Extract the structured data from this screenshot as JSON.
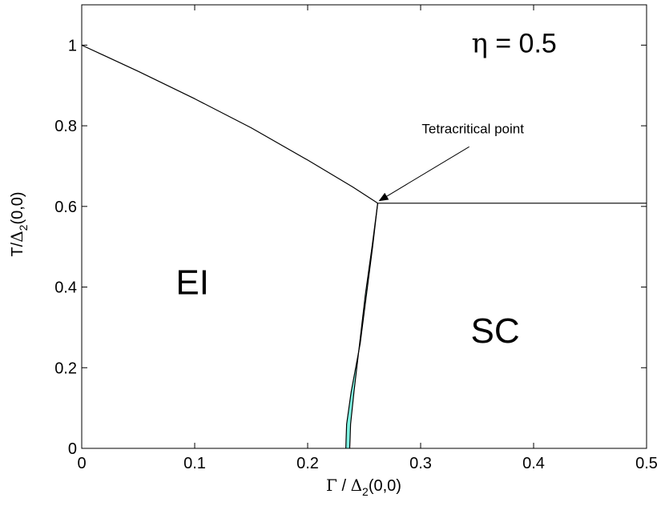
{
  "chart_data": {
    "type": "line",
    "title": "",
    "xlabel": {
      "gamma": "Γ",
      "slash": " / ",
      "delta": "Δ",
      "sub": "2",
      "args": "(0,0)"
    },
    "ylabel": {
      "prefix": "T/",
      "delta": "Δ",
      "sub": "2",
      "args": "(0,0)"
    },
    "xlim": [
      0,
      0.5
    ],
    "ylim": [
      0,
      1.1
    ],
    "xticks": [
      0,
      0.1,
      0.2,
      0.3,
      0.4,
      0.5
    ],
    "xtick_labels": [
      "0",
      "0.1",
      "0.2",
      "0.3",
      "0.4",
      "0.5"
    ],
    "yticks": [
      0,
      0.2,
      0.4,
      0.6,
      0.8,
      1
    ],
    "ytick_labels": [
      "0",
      "0.2",
      "0.4",
      "0.6",
      "0.8",
      "1"
    ],
    "grid": false,
    "colors": {
      "line": "#000000",
      "coexistence_fill": "#7ff5e3"
    },
    "series": [
      {
        "x": [
          0,
          0.05,
          0.1,
          0.15,
          0.2,
          0.24,
          0.262
        ],
        "y": [
          1.0,
          0.935,
          0.867,
          0.795,
          0.715,
          0.648,
          0.608
        ]
      },
      {
        "x": [
          0.262,
          0.3,
          0.35,
          0.4,
          0.45,
          0.5
        ],
        "y": [
          0.608,
          0.608,
          0.608,
          0.608,
          0.608,
          0.608
        ]
      },
      {
        "x": [
          0.262,
          0.257,
          0.251,
          0.246,
          0.241,
          0.238,
          0.2375,
          0.2372
        ],
        "y": [
          0.608,
          0.5,
          0.38,
          0.26,
          0.14,
          0.06,
          0.02,
          0.0
        ]
      },
      {
        "x": [
          0.262,
          0.2575,
          0.252,
          0.2465,
          0.2385,
          0.2345,
          0.234,
          0.2338
        ],
        "y": [
          0.608,
          0.5,
          0.38,
          0.26,
          0.14,
          0.06,
          0.02,
          0.0
        ]
      }
    ],
    "coexistence_region": {
      "right_x": [
        0.262,
        0.257,
        0.251,
        0.246,
        0.241,
        0.238,
        0.2375,
        0.2372
      ],
      "left_x": [
        0.262,
        0.2575,
        0.252,
        0.2465,
        0.2385,
        0.2345,
        0.234,
        0.2338
      ],
      "y": [
        0.608,
        0.5,
        0.38,
        0.26,
        0.14,
        0.06,
        0.02,
        0.0
      ]
    },
    "regions": [
      {
        "label": "EI",
        "x": 0.098,
        "y": 0.405
      },
      {
        "label": "SC",
        "x": 0.366,
        "y": 0.285
      }
    ],
    "parameter_label": {
      "symbol": "η",
      "rest": " = 0.5",
      "x": 0.345,
      "y": 1.0
    },
    "annotation": {
      "text": "Tetracritical point",
      "text_x": 0.301,
      "text_y": 0.79,
      "arrow_from": [
        0.343,
        0.748
      ],
      "arrow_to": [
        0.264,
        0.615
      ]
    }
  }
}
